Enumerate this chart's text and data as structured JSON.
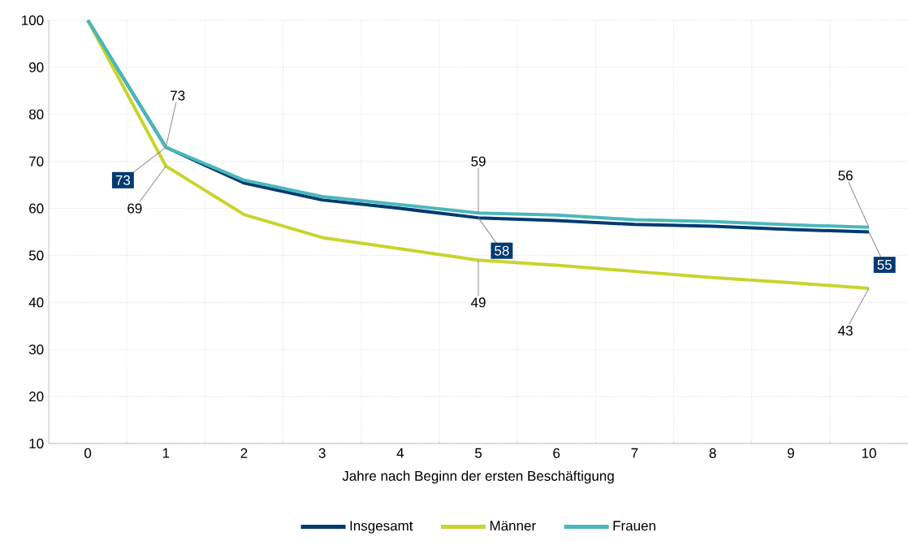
{
  "chart_data": {
    "type": "line",
    "xlabel": "Jahre nach Beginn der ersten Beschäftigung",
    "categories": [
      "0",
      "1",
      "2",
      "3",
      "4",
      "5",
      "6",
      "7",
      "8",
      "9",
      "10"
    ],
    "ylim": [
      10,
      100
    ],
    "yticks": [
      10,
      20,
      30,
      40,
      50,
      60,
      70,
      80,
      90,
      100
    ],
    "grid": true,
    "legend": "bottom",
    "marker": "none",
    "line_style": "solid",
    "series": [
      {
        "name": "Insgesamt",
        "color": "#003a70",
        "values": [
          100,
          73,
          65.4,
          61.8,
          60,
          58,
          57.4,
          56.6,
          56.2,
          55.5,
          55
        ],
        "value_labels": [
          null,
          "73",
          null,
          null,
          null,
          "58",
          null,
          null,
          null,
          null,
          "55"
        ]
      },
      {
        "name": "Männer",
        "color": "#c8d42c",
        "values": [
          100,
          69,
          58.7,
          53.8,
          51.4,
          49,
          47.9,
          46.6,
          45.3,
          44.2,
          43
        ],
        "value_labels": [
          null,
          "69",
          null,
          null,
          null,
          "49",
          null,
          null,
          null,
          null,
          "43"
        ]
      },
      {
        "name": "Frauen",
        "color": "#4ab8bb",
        "values": [
          100,
          73,
          66,
          62.5,
          60.8,
          59,
          58.6,
          57.6,
          57.2,
          56.5,
          56
        ],
        "value_labels": [
          null,
          "73",
          null,
          null,
          null,
          "59",
          null,
          null,
          null,
          null,
          "56"
        ]
      }
    ]
  }
}
